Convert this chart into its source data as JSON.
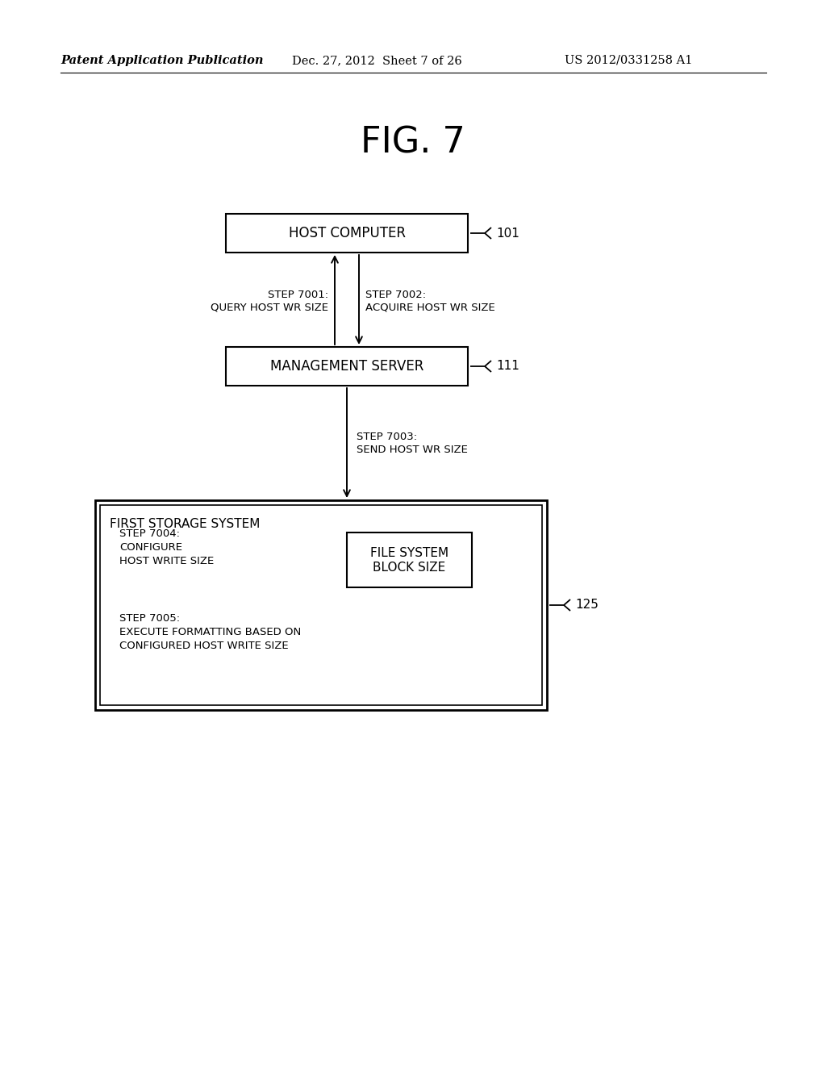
{
  "bg_color": "#ffffff",
  "header_left": "Patent Application Publication",
  "header_mid": "Dec. 27, 2012  Sheet 7 of 26",
  "header_right": "US 2012/0331258 A1",
  "fig_title": "FIG. 7",
  "host_computer_label": "HOST COMPUTER",
  "host_ref": "101",
  "mgmt_server_label": "MANAGEMENT SERVER",
  "mgmt_ref": "111",
  "storage_system_label": "FIRST STORAGE SYSTEM",
  "storage_ref": "125",
  "file_system_line1": "FILE SYSTEM",
  "file_system_line2": "BLOCK SIZE",
  "step7001_line1": "STEP 7001:",
  "step7001_line2": "QUERY HOST WR SIZE",
  "step7002_line1": "STEP 7002:",
  "step7002_line2": "ACQUIRE HOST WR SIZE",
  "step7003_line1": "STEP 7003:",
  "step7003_line2": "SEND HOST WR SIZE",
  "step7004_line1": "STEP 7004:",
  "step7004_line2": "CONFIGURE",
  "step7004_line3": "HOST WRITE SIZE",
  "step7005_line1": "STEP 7005:",
  "step7005_line2": "EXECUTE FORMATTING BASED ON",
  "step7005_line3": "CONFIGURED HOST WRITE SIZE"
}
